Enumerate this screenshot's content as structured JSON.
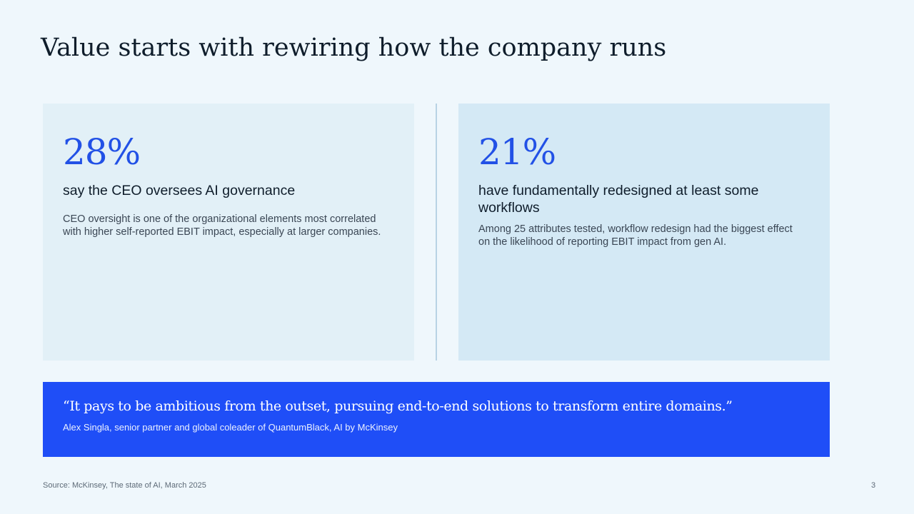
{
  "slide": {
    "title": "Value starts with rewiring how the company runs",
    "page_number": "3"
  },
  "cards": [
    {
      "stat": "28%",
      "headline": "say the CEO oversees AI governance",
      "description": "CEO oversight is one of the organizational elements most correlated with higher self-reported EBIT impact, especially at larger companies."
    },
    {
      "stat": "21%",
      "headline": "have fundamentally redesigned at least some workflows",
      "description": "Among 25 attributes tested, workflow redesign had the biggest effect on the likelihood of reporting EBIT impact from gen AI."
    }
  ],
  "quote": {
    "text": "“It pays to be ambitious from the outset, pursuing end-to-end solutions to transform entire domains.”",
    "author": "Alex Singla, senior partner and global coleader of QuantumBlack, AI by McKinsey"
  },
  "footer": {
    "source": "Source: McKinsey, The state of AI, March 2025"
  },
  "colors": {
    "background": "#eff7fc",
    "accent_blue": "#2251e6",
    "quote_background": "#1f4ef7",
    "card_left": "#e2f0f7",
    "card_right": "#d4e9f5"
  }
}
